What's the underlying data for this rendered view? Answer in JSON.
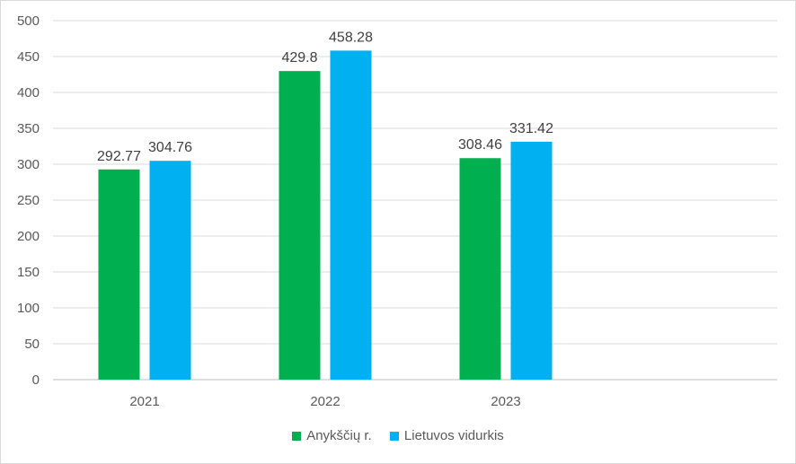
{
  "chart_data": {
    "type": "bar",
    "categories": [
      "2021",
      "2022",
      "2023"
    ],
    "series": [
      {
        "name": "Anykščių r.",
        "color": "#00b050",
        "values": [
          292.77,
          429.8,
          308.46
        ]
      },
      {
        "name": "Lietuvos vidurkis",
        "color": "#00b0f0",
        "values": [
          304.76,
          458.28,
          331.42
        ]
      }
    ],
    "ylim": [
      0,
      500
    ],
    "yticks": [
      "0",
      "50",
      "100",
      "150",
      "200",
      "250",
      "300",
      "350",
      "400",
      "450",
      "500"
    ],
    "grid": true,
    "legend_position": "bottom",
    "data_labels": [
      [
        "292.77",
        "429.8",
        "308.46"
      ],
      [
        "304.76",
        "458.28",
        "331.42"
      ]
    ]
  }
}
